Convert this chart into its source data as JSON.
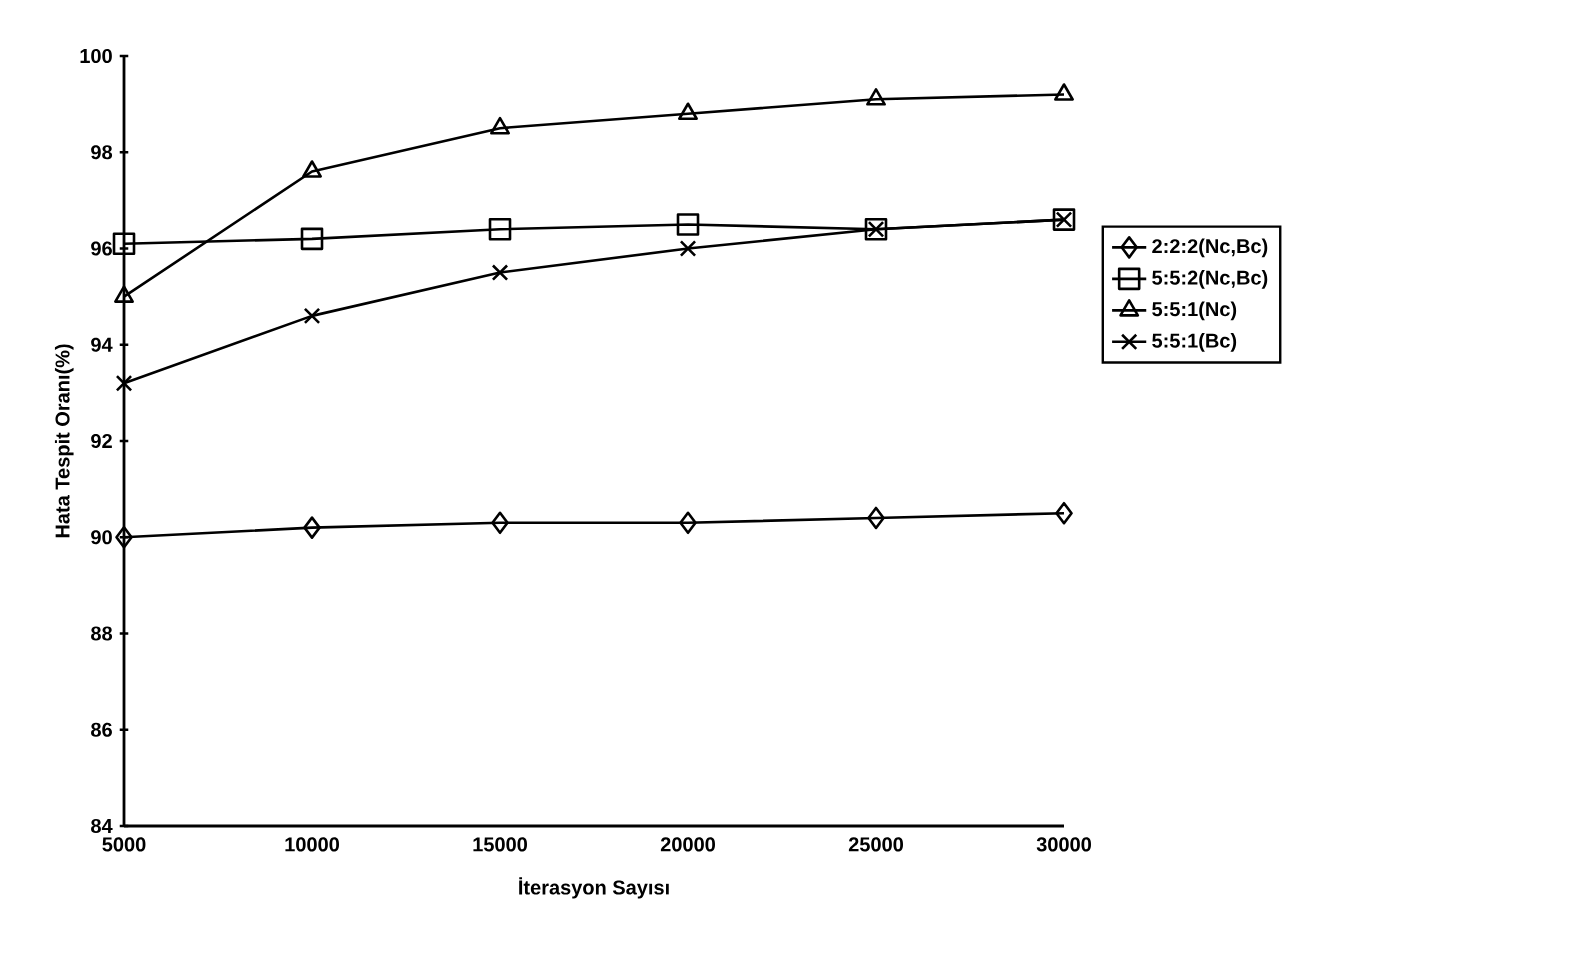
{
  "chart_data": {
    "type": "line",
    "xlabel": "İterasyon Sayısı",
    "ylabel": "Hata Tespit Oranı(%)",
    "x": [
      5000,
      10000,
      15000,
      20000,
      25000,
      30000
    ],
    "xlim": [
      5000,
      30000
    ],
    "xticks": [
      5000,
      10000,
      15000,
      20000,
      25000,
      30000
    ],
    "ylim": [
      84,
      100
    ],
    "yticks": [
      84,
      86,
      88,
      90,
      92,
      94,
      96,
      98,
      100
    ],
    "legend": "right",
    "grid": false,
    "series": [
      {
        "name": "2:2:2(Nc,Bc)",
        "color": "#000000",
        "marker": "diamond",
        "values": [
          90.0,
          90.2,
          90.3,
          90.3,
          90.4,
          90.5
        ]
      },
      {
        "name": "5:5:2(Nc,Bc)",
        "color": "#000000",
        "marker": "square",
        "values": [
          96.1,
          96.2,
          96.4,
          96.5,
          96.4,
          96.6
        ]
      },
      {
        "name": "5:5:1(Nc)",
        "color": "#000000",
        "marker": "triangle",
        "values": [
          95.0,
          97.6,
          98.5,
          98.8,
          99.1,
          99.2
        ]
      },
      {
        "name": "5:5:1(Bc)",
        "color": "#000000",
        "marker": "cross",
        "values": [
          93.2,
          94.6,
          95.5,
          96.0,
          96.4,
          96.6
        ]
      }
    ]
  }
}
